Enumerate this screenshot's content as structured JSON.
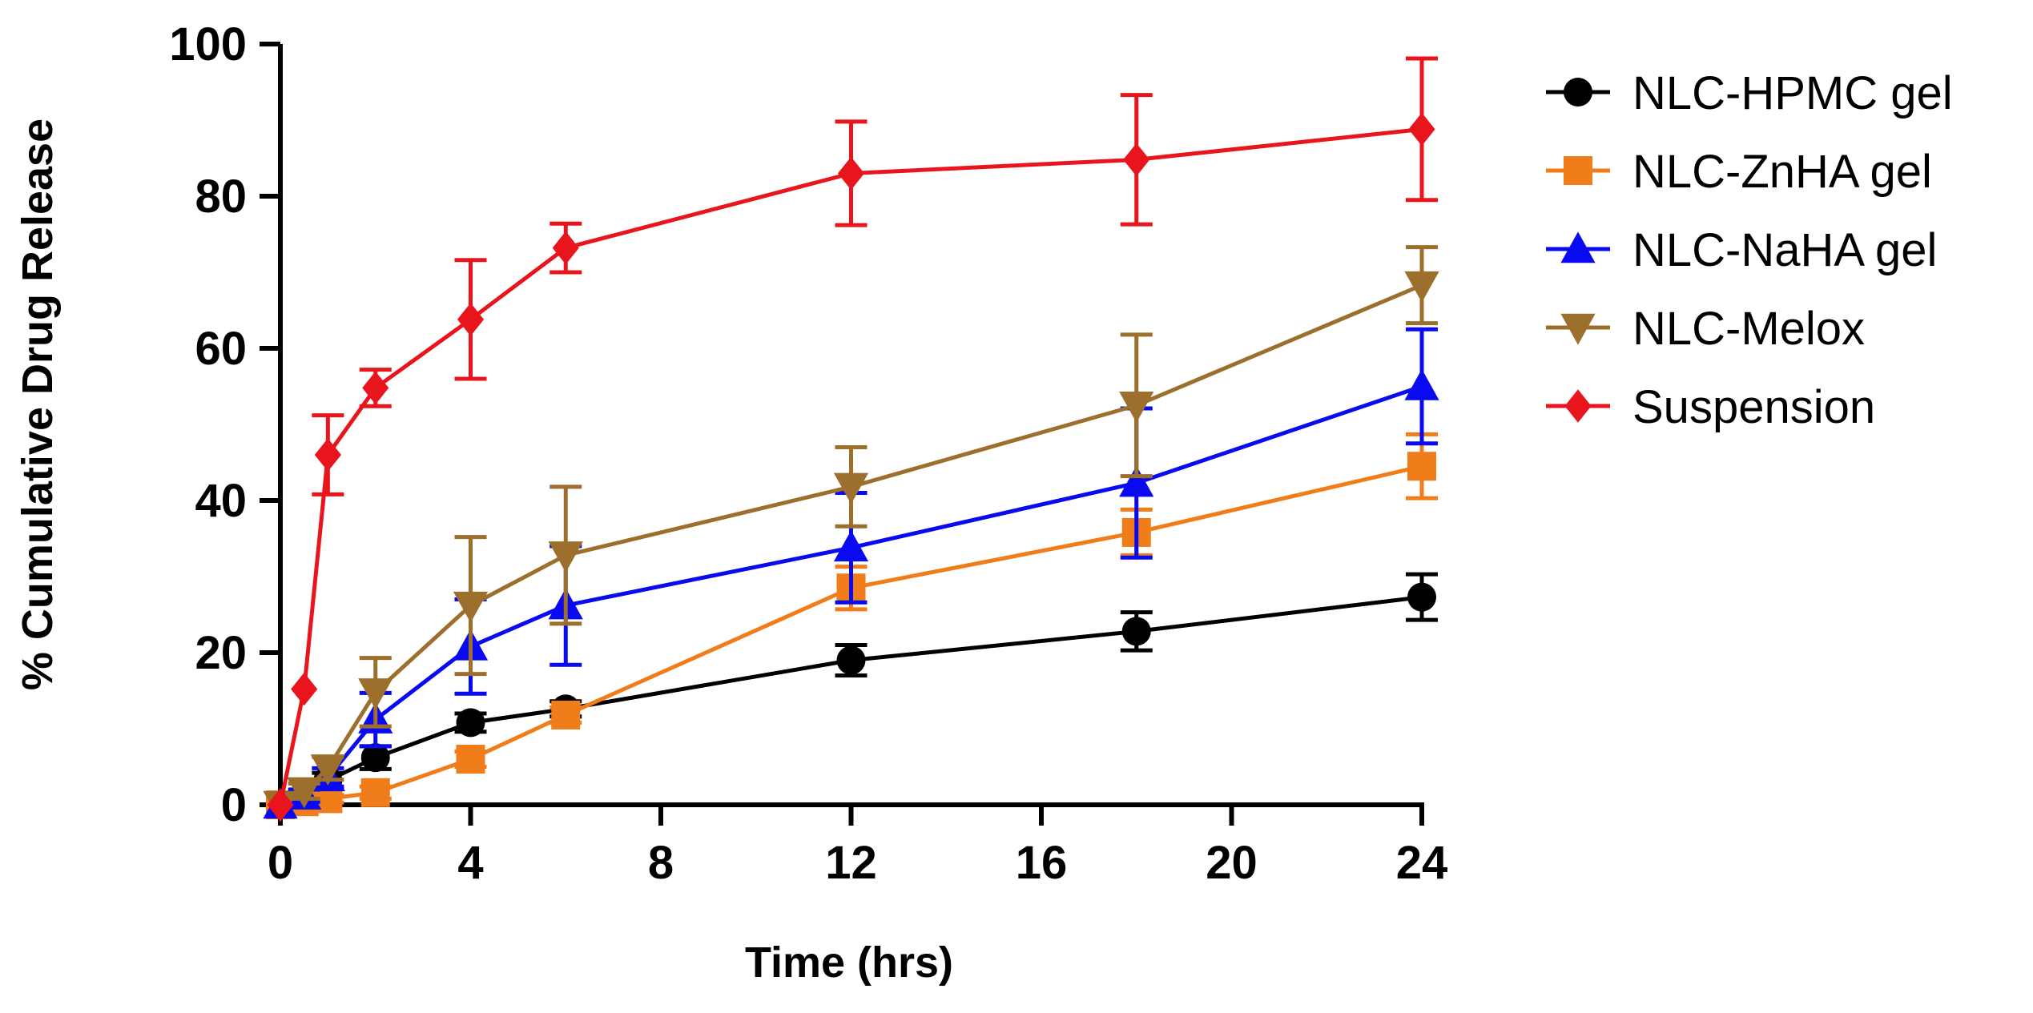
{
  "chart_data": {
    "type": "line",
    "title": "",
    "xlabel": "Time (hrs)",
    "ylabel": "% Cumulative Drug Release",
    "xlim": [
      0,
      24
    ],
    "ylim": [
      0,
      100
    ],
    "xticks": [
      0,
      4,
      8,
      12,
      16,
      20,
      24
    ],
    "yticks": [
      0,
      20,
      40,
      60,
      80,
      100
    ],
    "grid": false,
    "legend_position": "right",
    "series": [
      {
        "name": "NLC-HPMC gel",
        "color": "#000000",
        "marker": "circle",
        "x": [
          0,
          0.5,
          1,
          2,
          4,
          6,
          12,
          18,
          24
        ],
        "y": [
          0,
          0.8,
          3.2,
          6.2,
          10.8,
          12.6,
          19.0,
          22.8,
          27.3
        ],
        "err": [
          0,
          0.6,
          1.0,
          1.5,
          1.2,
          1.0,
          2.0,
          2.5,
          3.0
        ]
      },
      {
        "name": "NLC-ZnHA gel",
        "color": "#F07C1A",
        "marker": "square",
        "x": [
          0,
          0.5,
          1,
          2,
          4,
          6,
          12,
          18,
          24
        ],
        "y": [
          0,
          0.4,
          0.8,
          1.6,
          6.0,
          11.8,
          28.5,
          35.8,
          44.5
        ],
        "err": [
          0,
          0.3,
          0.5,
          0.8,
          1.0,
          1.0,
          2.8,
          3.0,
          4.2
        ]
      },
      {
        "name": "NLC-NaHA gel",
        "color": "#0A0AF0",
        "marker": "triangle-up",
        "x": [
          0,
          0.5,
          1,
          2,
          4,
          6,
          12,
          18,
          24
        ],
        "y": [
          0,
          1.2,
          3.6,
          11.2,
          20.8,
          26.2,
          33.8,
          42.3,
          55.0
        ],
        "err": [
          0,
          0.8,
          1.2,
          3.5,
          6.2,
          7.8,
          7.2,
          9.8,
          7.5
        ]
      },
      {
        "name": "NLC-Melox",
        "color": "#9C6F2C",
        "marker": "triangle-down",
        "x": [
          0,
          0.5,
          1,
          2,
          4,
          6,
          12,
          18,
          24
        ],
        "y": [
          0,
          1.8,
          4.8,
          14.8,
          26.2,
          32.8,
          41.8,
          52.5,
          68.3
        ],
        "err": [
          0,
          1.0,
          1.5,
          4.5,
          9.0,
          9.0,
          5.2,
          9.3,
          5.0
        ]
      },
      {
        "name": "Suspension",
        "color": "#E8161C",
        "marker": "diamond",
        "x": [
          0,
          0.5,
          1,
          2,
          4,
          6,
          12,
          18,
          24
        ],
        "y": [
          0,
          15.2,
          46.0,
          54.8,
          63.8,
          73.2,
          83.0,
          84.8,
          88.8
        ],
        "err": [
          0,
          0,
          5.2,
          2.4,
          7.8,
          3.2,
          6.8,
          8.5,
          9.3
        ]
      }
    ]
  }
}
